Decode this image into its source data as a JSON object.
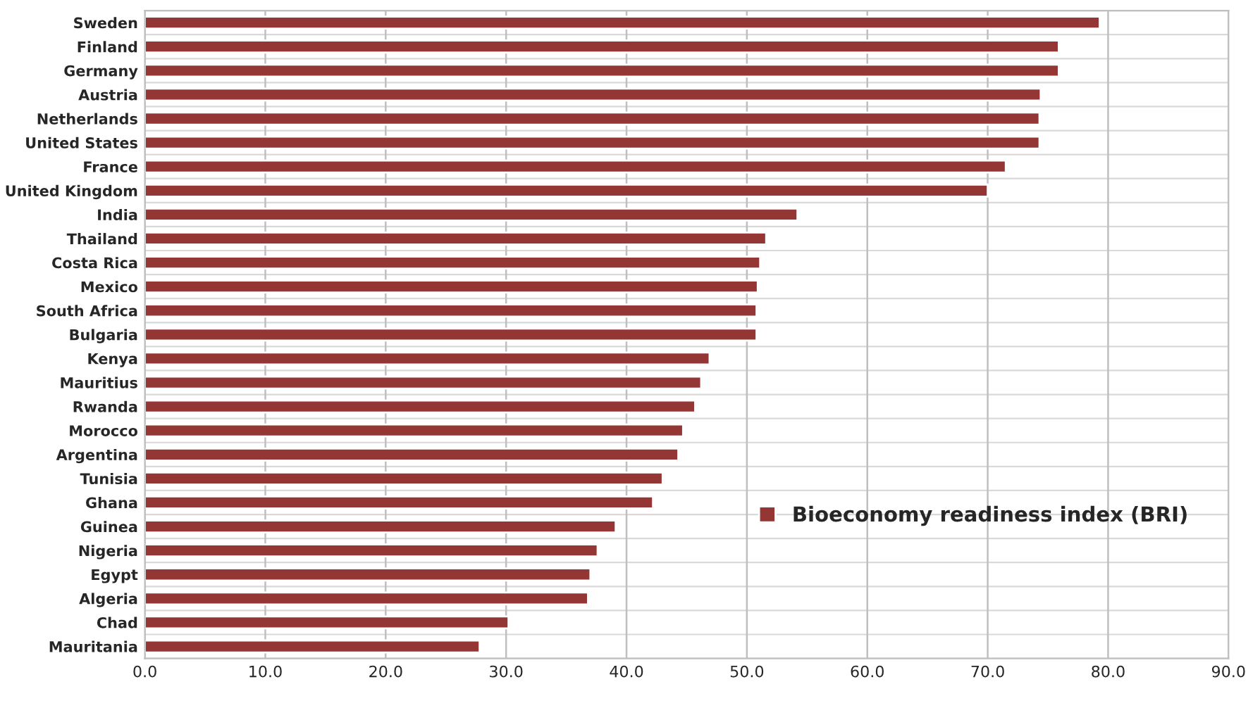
{
  "chart_data": {
    "type": "bar",
    "orientation": "horizontal",
    "categories": [
      "Sweden",
      "Finland",
      "Germany",
      "Austria",
      "Netherlands",
      "United States",
      "France",
      "United Kingdom",
      "India",
      "Thailand",
      "Costa Rica",
      "Mexico",
      "South Africa",
      "Bulgaria",
      "Kenya",
      "Mauritius",
      "Rwanda",
      "Morocco",
      "Argentina",
      "Tunisia",
      "Ghana",
      "Guinea",
      "Nigeria",
      "Egypt",
      "Algeria",
      "Chad",
      "Mauritania"
    ],
    "series": [
      {
        "name": "Bioeconomy readiness index (BRI)",
        "color": "#943634",
        "values": [
          79.3,
          75.9,
          75.9,
          74.4,
          74.3,
          74.3,
          71.5,
          70.0,
          54.2,
          51.6,
          51.1,
          50.9,
          50.8,
          50.8,
          46.9,
          46.2,
          45.7,
          44.7,
          44.3,
          43.0,
          42.2,
          39.1,
          37.6,
          37.0,
          36.8,
          30.2,
          27.8
        ]
      }
    ],
    "xlim": [
      0,
      90
    ],
    "xticks": [
      {
        "value": 0,
        "label": "0.0"
      },
      {
        "value": 10,
        "label": "10.0"
      },
      {
        "value": 20,
        "label": "20.0"
      },
      {
        "value": 30,
        "label": "30.0"
      },
      {
        "value": 40,
        "label": "40.0"
      },
      {
        "value": 50,
        "label": "50.0"
      },
      {
        "value": 60,
        "label": "60.0"
      },
      {
        "value": 70,
        "label": "70.0"
      },
      {
        "value": 80,
        "label": "80.0"
      },
      {
        "value": 90,
        "label": "90.0"
      }
    ],
    "grid": "x",
    "legend": "right"
  }
}
